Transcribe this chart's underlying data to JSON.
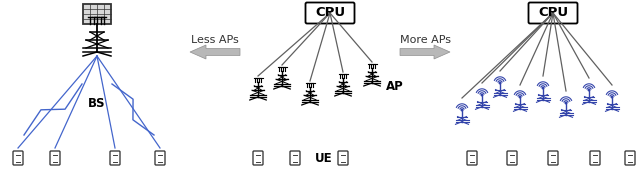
{
  "bg_color": "#ffffff",
  "arrow_color": "#b8b8b8",
  "line_color": "#606060",
  "bs_color": "#111111",
  "ap_color": "#111111",
  "wifi_color": "#3344aa",
  "phone_color": "#404040",
  "blue_line_color": "#4466cc",
  "less_aps_text": "Less APs",
  "more_aps_text": "More APs",
  "bs_label": "BS",
  "ap_label": "AP",
  "ue_label": "UE",
  "cpu_label": "CPU",
  "label_fontsize": 8.5,
  "cpu_fontsize": 9.5,
  "arrow_label_fontsize": 8.0
}
